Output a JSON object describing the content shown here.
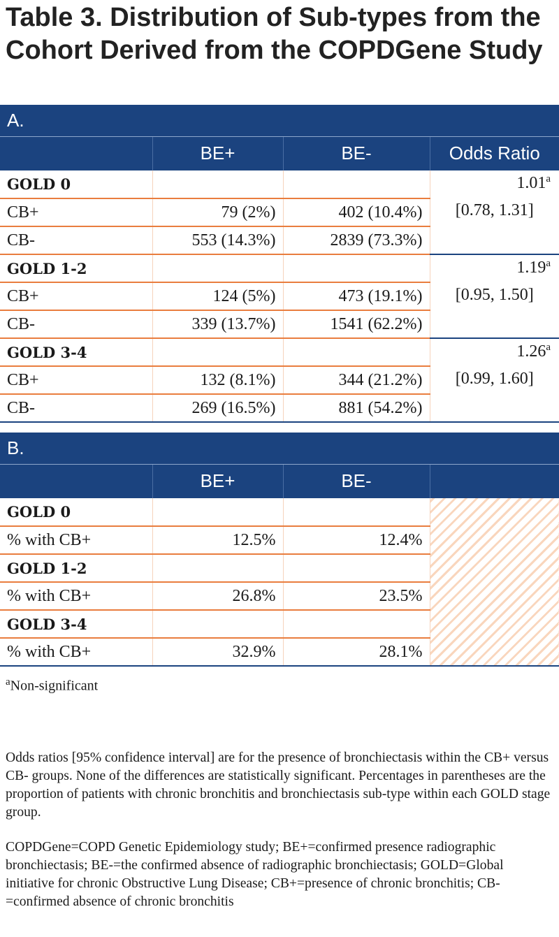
{
  "title": "Table 3. Distribution of Sub-types from the Cohort Derived from the COPDGene Study",
  "section_a": {
    "label": "A.",
    "headers": [
      "BE+",
      "BE-",
      "Odds Ratio"
    ],
    "groups": [
      {
        "name": "GOLD 0",
        "rows": [
          [
            "CB+",
            "79 (2%)",
            "402 (10.4%)"
          ],
          [
            "CB-",
            "553 (14.3%)",
            "2839 (73.3%)"
          ]
        ],
        "odds_ratio": "1.01",
        "odds_note": "a",
        "ci": "[0.78, 1.31]"
      },
      {
        "name": "GOLD 1-2",
        "rows": [
          [
            "CB+",
            "124 (5%)",
            "473 (19.1%)"
          ],
          [
            "CB-",
            "339 (13.7%)",
            "1541 (62.2%)"
          ]
        ],
        "odds_ratio": "1.19",
        "odds_note": "a",
        "ci": "[0.95, 1.50]"
      },
      {
        "name": "GOLD 3-4",
        "rows": [
          [
            "CB+",
            "132 (8.1%)",
            "344 (21.2%)"
          ],
          [
            "CB-",
            "269 (16.5%)",
            "881 (54.2%)"
          ]
        ],
        "odds_ratio": "1.26",
        "odds_note": "a",
        "ci": "[0.99, 1.60]"
      }
    ]
  },
  "section_b": {
    "label": "B.",
    "headers": [
      "BE+",
      "BE-"
    ],
    "groups": [
      {
        "name": "GOLD 0",
        "row": [
          "% with CB+",
          "12.5%",
          "12.4%"
        ]
      },
      {
        "name": "GOLD 1-2",
        "row": [
          "% with CB+",
          "26.8%",
          "23.5%"
        ]
      },
      {
        "name": "GOLD 3-4",
        "row": [
          "% with CB+",
          "32.9%",
          "28.1%"
        ]
      }
    ]
  },
  "footnote": {
    "mark": "a",
    "text": "Non-significant"
  },
  "notes": [
    "Odds ratios [95% confidence interval] are for the presence of bronchiectasis within the CB+ versus CB- groups. None of the differences are statistically significant.  Percentages in parentheses are the proportion of patients with chronic bronchitis and bronchiectasis sub-type within each GOLD stage group.",
    "COPDGene=COPD Genetic Epidemiology study; BE+=confirmed presence radiographic bronchiectasis; BE-=the confirmed absence of radiographic bronchiectasis; GOLD=Global initiative for chronic Obstructive Lung Disease; CB+=presence of chronic bronchitis; CB-=confirmed absence of chronic bronchitis"
  ]
}
